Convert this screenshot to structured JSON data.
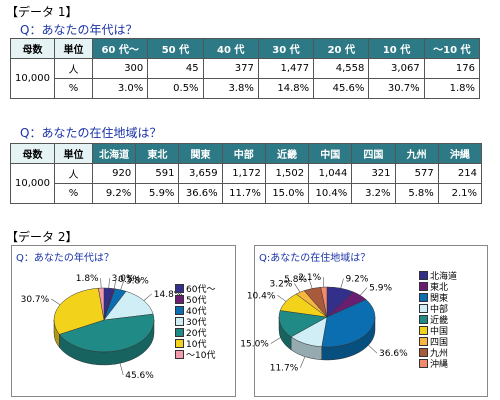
{
  "section1": "【データ 1】",
  "q_age": "Q：あなたの年代は？",
  "q_region": "Q：あなたの在住地域は？",
  "section2": "【データ 2】",
  "table_common": {
    "mother_label": "母数",
    "unit_label": "単位",
    "mother_value": "10,000",
    "unit_people": "人",
    "unit_pct": "%"
  },
  "age_table": {
    "headers": [
      "60 代～",
      "50 代",
      "40 代",
      "30 代",
      "20 代",
      "10 代",
      "～10 代"
    ],
    "people": [
      "300",
      "45",
      "377",
      "1,477",
      "4,558",
      "3,067",
      "176"
    ],
    "percent": [
      "3.0%",
      "0.5%",
      "3.8%",
      "14.8%",
      "45.6%",
      "30.7%",
      "1.8%"
    ]
  },
  "region_table": {
    "headers": [
      "北海道",
      "東北",
      "関東",
      "中部",
      "近畿",
      "中国",
      "四国",
      "九州",
      "沖縄"
    ],
    "people": [
      "920",
      "591",
      "3,659",
      "1,172",
      "1,502",
      "1,044",
      "321",
      "577",
      "214"
    ],
    "percent": [
      "9.2%",
      "5.9%",
      "36.6%",
      "11.7%",
      "15.0%",
      "10.4%",
      "3.2%",
      "5.8%",
      "2.1%"
    ]
  },
  "chart_data": [
    {
      "type": "pie",
      "title": "Q：あなたの年代は？",
      "categories": [
        "60代～",
        "50代",
        "40代",
        "30代",
        "20代",
        "10代",
        "～10代"
      ],
      "values": [
        3.0,
        0.5,
        3.8,
        14.8,
        45.6,
        30.7,
        1.8
      ],
      "labels": [
        "3.0%",
        "0.5%",
        "3.8%",
        "14.8%",
        "45.6%",
        "30.7%",
        "1.8%"
      ],
      "colors": [
        "#33308c",
        "#6a1e72",
        "#0a6eb0",
        "#cfeef5",
        "#1f8a86",
        "#f2d21b",
        "#f29aae"
      ],
      "legend": "right"
    },
    {
      "type": "pie",
      "title": "Q:あなたの在住地域は？",
      "categories": [
        "北海道",
        "東北",
        "関東",
        "中部",
        "近畿",
        "中国",
        "四国",
        "九州",
        "沖縄"
      ],
      "values": [
        9.2,
        5.9,
        36.6,
        11.7,
        15.0,
        10.4,
        3.2,
        5.8,
        2.1
      ],
      "labels": [
        "9.2%",
        "5.9%",
        "36.6%",
        "11.7%",
        "15.0%",
        "10.4%",
        "3.2%",
        "5.8%",
        "2.1%"
      ],
      "colors": [
        "#33308c",
        "#6a1e72",
        "#0a6eb0",
        "#cfeef5",
        "#1f8a86",
        "#f2d21b",
        "#f7b63f",
        "#a85a3c",
        "#f28a6e"
      ],
      "legend": "right"
    }
  ]
}
